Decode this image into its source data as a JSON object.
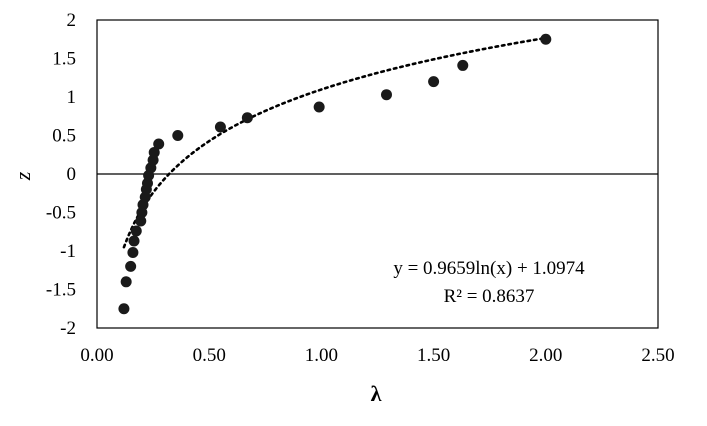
{
  "chart_data": {
    "type": "scatter",
    "title": "",
    "xlabel": "λ",
    "ylabel": "z",
    "xlim": [
      0,
      2.5
    ],
    "ylim": [
      -2,
      2
    ],
    "x_ticks": [
      "0.00",
      "0.50",
      "1.00",
      "1.50",
      "2.00",
      "2.50"
    ],
    "y_ticks": [
      "2",
      "1.5",
      "1",
      "0.5",
      "0",
      "-0.5",
      "-1",
      "-1.5",
      "-2"
    ],
    "x_tick_values": [
      0,
      0.5,
      1.0,
      1.5,
      2.0,
      2.5
    ],
    "y_tick_values": [
      2,
      1.5,
      1,
      0.5,
      0,
      -0.5,
      -1,
      -1.5,
      -2
    ],
    "grid": false,
    "legend": "none",
    "colors": {
      "points": "#1a1a1a",
      "trendline": "#000000",
      "axis": "#000000"
    },
    "series": [
      {
        "points": [
          {
            "x": 0.12,
            "y": -1.75
          },
          {
            "x": 0.13,
            "y": -1.4
          },
          {
            "x": 0.15,
            "y": -1.2
          },
          {
            "x": 0.16,
            "y": -1.02
          },
          {
            "x": 0.165,
            "y": -0.87
          },
          {
            "x": 0.175,
            "y": -0.74
          },
          {
            "x": 0.195,
            "y": -0.61
          },
          {
            "x": 0.2,
            "y": -0.5
          },
          {
            "x": 0.205,
            "y": -0.4
          },
          {
            "x": 0.215,
            "y": -0.3
          },
          {
            "x": 0.22,
            "y": -0.2
          },
          {
            "x": 0.225,
            "y": -0.12
          },
          {
            "x": 0.23,
            "y": -0.02
          },
          {
            "x": 0.24,
            "y": 0.08
          },
          {
            "x": 0.25,
            "y": 0.18
          },
          {
            "x": 0.255,
            "y": 0.28
          },
          {
            "x": 0.275,
            "y": 0.39
          },
          {
            "x": 0.36,
            "y": 0.5
          },
          {
            "x": 0.55,
            "y": 0.61
          },
          {
            "x": 0.67,
            "y": 0.73
          },
          {
            "x": 0.99,
            "y": 0.87
          },
          {
            "x": 1.29,
            "y": 1.03
          },
          {
            "x": 1.5,
            "y": 1.2
          },
          {
            "x": 1.63,
            "y": 1.41
          },
          {
            "x": 2.0,
            "y": 1.75
          }
        ]
      }
    ],
    "trendline": {
      "kind": "log",
      "a": 0.9659,
      "b": 1.0974,
      "x_range": [
        0.12,
        2.0
      ],
      "equation": "y = 0.9659ln(x) + 1.0974",
      "r_squared": "R² = 0.8637"
    }
  }
}
